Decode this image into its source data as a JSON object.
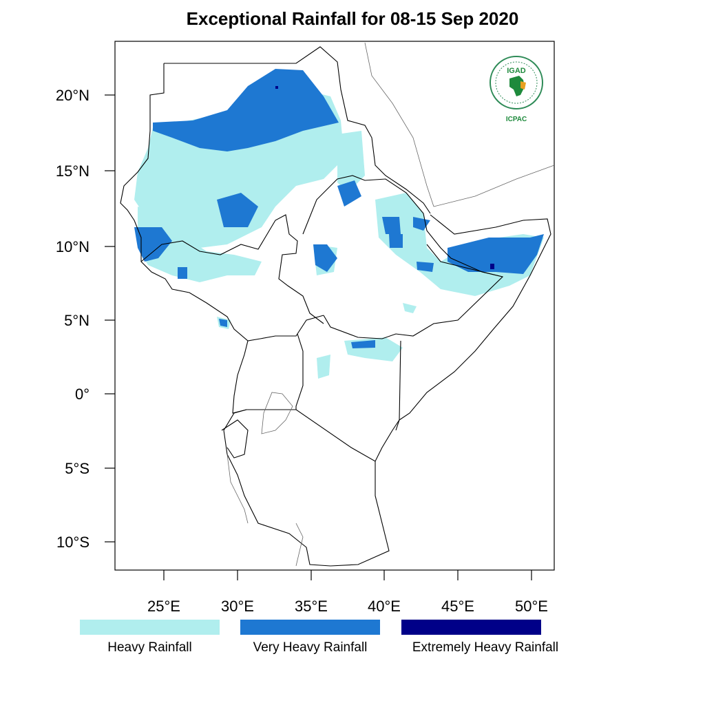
{
  "title": "Exceptional Rainfall for 08-15 Sep 2020",
  "map": {
    "lat_ticks": [
      "20°N",
      "15°N",
      "10°N",
      "5°N",
      "0°",
      "5°S",
      "10°S"
    ],
    "lon_ticks": [
      "25°E",
      "30°E",
      "35°E",
      "40°E",
      "45°E",
      "50°E"
    ]
  },
  "legend": [
    {
      "label": "Heavy Rainfall",
      "color": "#b0eeee"
    },
    {
      "label": "Very Heavy Rainfall",
      "color": "#1e78d2"
    },
    {
      "label": "Extremely Heavy Rainfall",
      "color": "#000088"
    }
  ],
  "logo": {
    "top_text": "IGAD",
    "bottom_text": "ICPAC",
    "accent": "#1e8a3c"
  }
}
